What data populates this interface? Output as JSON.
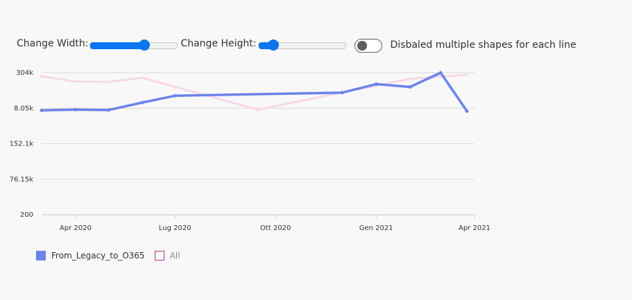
{
  "controls": {
    "width_label": "Change Width:",
    "width_value": 0.62,
    "height_label": "Change Height:",
    "height_value": 0.17,
    "toggle_label": "Disbaled multiple shapes for each line",
    "toggle_on": false
  },
  "colors": {
    "series1": "#6b83ea",
    "series2": "#f6d7ea",
    "series2_border": "#a4378f",
    "grid": "#d8d8d8",
    "accent": "#0b76f0"
  },
  "chart_data": {
    "type": "line",
    "x_tick_labels": [
      "Apr 2020",
      "Lug 2020",
      "Ott 2020",
      "Gen 2021",
      "Apr 2021"
    ],
    "x_ticks": [
      "2020-04-01",
      "2020-07-01",
      "2020-10-01",
      "2021-01-01",
      "2021-04-01"
    ],
    "y_tick_labels": [
      "304k",
      "8.05k",
      "152.1k",
      "76.15k",
      "200"
    ],
    "xlim": [
      "2020-03-01",
      "2021-04-01"
    ],
    "grid": true,
    "legend_position": "bottom-left",
    "series": [
      {
        "name": "From_Legacy_to_O365",
        "active": true,
        "points": [
          {
            "x": "2020-03-01",
            "y": 0.735
          },
          {
            "x": "2020-04-01",
            "y": 0.74
          },
          {
            "x": "2020-05-01",
            "y": 0.737
          },
          {
            "x": "2020-06-01",
            "y": 0.79
          },
          {
            "x": "2020-07-01",
            "y": 0.838
          },
          {
            "x": "2020-12-01",
            "y": 0.86
          },
          {
            "x": "2021-01-01",
            "y": 0.92
          },
          {
            "x": "2021-02-01",
            "y": 0.9
          },
          {
            "x": "2021-03-01",
            "y": 1.0
          },
          {
            "x": "2021-03-25",
            "y": 0.73
          }
        ]
      },
      {
        "name": "All",
        "active": false,
        "points": [
          {
            "x": "2020-03-01",
            "y": 0.975
          },
          {
            "x": "2020-04-01",
            "y": 0.938
          },
          {
            "x": "2020-05-01",
            "y": 0.935
          },
          {
            "x": "2020-06-01",
            "y": 0.965
          },
          {
            "x": "2020-09-15",
            "y": 0.74
          },
          {
            "x": "2021-02-01",
            "y": 0.958
          },
          {
            "x": "2021-03-25",
            "y": 0.985
          }
        ]
      }
    ]
  }
}
